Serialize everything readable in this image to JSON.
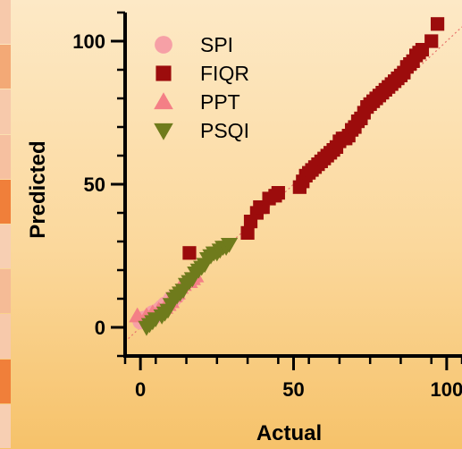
{
  "chart_data": {
    "type": "scatter",
    "xlabel": "Actual",
    "ylabel": "Predicted",
    "xlim": [
      -5,
      105
    ],
    "ylim": [
      -10,
      110
    ],
    "x_ticks": [
      0,
      50,
      100
    ],
    "y_ticks": [
      0,
      50,
      100
    ],
    "grid": false,
    "legend_position": "top-left",
    "identity_line": true,
    "identity_line_color": "#e8706a",
    "series": [
      {
        "name": "SPI",
        "marker": "circle",
        "color": "#f6a0a6",
        "points": [
          [
            0,
            2
          ],
          [
            1,
            3
          ],
          [
            2,
            2
          ],
          [
            3,
            4
          ],
          [
            3,
            3
          ],
          [
            4,
            5
          ],
          [
            5,
            5
          ],
          [
            5,
            4
          ],
          [
            6,
            6
          ],
          [
            7,
            6
          ],
          [
            7,
            7
          ],
          [
            8,
            8
          ],
          [
            9,
            8
          ],
          [
            10,
            9
          ],
          [
            11,
            10
          ],
          [
            12,
            11
          ],
          [
            10,
            10
          ]
        ]
      },
      {
        "name": "FIQR",
        "marker": "square",
        "color": "#9c0c0c",
        "points": [
          [
            16,
            26
          ],
          [
            35,
            33
          ],
          [
            36,
            37
          ],
          [
            38,
            40
          ],
          [
            39,
            42
          ],
          [
            40,
            42
          ],
          [
            42,
            45
          ],
          [
            44,
            46
          ],
          [
            45,
            47
          ],
          [
            52,
            49
          ],
          [
            53,
            51
          ],
          [
            54,
            53
          ],
          [
            55,
            54
          ],
          [
            56,
            55
          ],
          [
            57,
            56
          ],
          [
            58,
            57
          ],
          [
            59,
            58
          ],
          [
            60,
            59
          ],
          [
            61,
            60
          ],
          [
            62,
            61
          ],
          [
            63,
            62
          ],
          [
            64,
            63
          ],
          [
            65,
            65
          ],
          [
            66,
            66
          ],
          [
            67,
            66
          ],
          [
            68,
            67
          ],
          [
            69,
            69
          ],
          [
            70,
            70
          ],
          [
            71,
            72
          ],
          [
            72,
            73
          ],
          [
            73,
            75
          ],
          [
            74,
            77
          ],
          [
            75,
            78
          ],
          [
            76,
            79
          ],
          [
            77,
            80
          ],
          [
            78,
            81
          ],
          [
            79,
            82
          ],
          [
            80,
            83
          ],
          [
            81,
            84
          ],
          [
            82,
            85
          ],
          [
            83,
            86
          ],
          [
            84,
            87
          ],
          [
            85,
            88
          ],
          [
            86,
            89
          ],
          [
            87,
            91
          ],
          [
            88,
            92
          ],
          [
            89,
            93
          ],
          [
            90,
            95
          ],
          [
            91,
            96
          ],
          [
            92,
            97
          ],
          [
            95,
            100
          ],
          [
            97,
            106
          ]
        ]
      },
      {
        "name": "PPT",
        "marker": "triangle-up",
        "color": "#f47f86",
        "points": [
          [
            -1,
            4
          ],
          [
            2,
            4
          ],
          [
            4,
            5
          ],
          [
            6,
            6
          ],
          [
            8,
            7
          ],
          [
            9,
            8
          ],
          [
            10,
            9
          ],
          [
            11,
            11
          ],
          [
            12,
            12
          ],
          [
            13,
            14
          ],
          [
            14,
            15
          ],
          [
            15,
            16
          ],
          [
            16,
            16
          ],
          [
            17,
            18
          ],
          [
            18,
            18
          ],
          [
            17,
            17
          ]
        ]
      },
      {
        "name": "PSQI",
        "marker": "triangle-down",
        "color": "#6f7b1c",
        "points": [
          [
            2,
            0
          ],
          [
            3,
            1
          ],
          [
            4,
            2
          ],
          [
            5,
            3
          ],
          [
            7,
            4
          ],
          [
            8,
            5
          ],
          [
            9,
            6
          ],
          [
            10,
            8
          ],
          [
            11,
            10
          ],
          [
            12,
            11
          ],
          [
            13,
            12
          ],
          [
            14,
            13
          ],
          [
            15,
            15
          ],
          [
            16,
            16
          ],
          [
            17,
            17
          ],
          [
            18,
            19
          ],
          [
            19,
            20
          ],
          [
            20,
            21
          ],
          [
            21,
            22
          ],
          [
            22,
            24
          ],
          [
            23,
            25
          ],
          [
            24,
            26
          ],
          [
            25,
            26
          ],
          [
            26,
            27
          ],
          [
            27,
            28
          ],
          [
            28,
            28
          ],
          [
            29,
            29
          ]
        ]
      }
    ]
  },
  "page": {
    "side_strip_colors": [
      "#f7c9ab",
      "#f3a976",
      "#f7c9ab",
      "#f6c0a0",
      "#f07f3a",
      "#f7cfb3",
      "#f5bb96",
      "#f7c9ab",
      "#f07f3a",
      "#f7cfb3"
    ]
  }
}
